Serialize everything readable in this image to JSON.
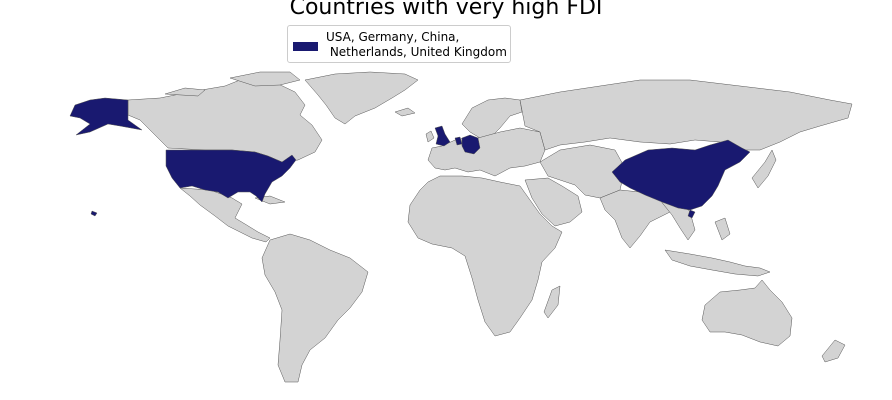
{
  "title": "Countries with very high FDI",
  "legend": {
    "label": "USA, Germany, China,\n Netherlands, United Kingdom",
    "color": "#191970"
  },
  "colors": {
    "highlight": "#191970",
    "land": "#d3d3d3",
    "border": "#555555",
    "background": "#ffffff"
  },
  "highlighted_countries": [
    "USA",
    "Germany",
    "China",
    "Netherlands",
    "United Kingdom"
  ]
}
